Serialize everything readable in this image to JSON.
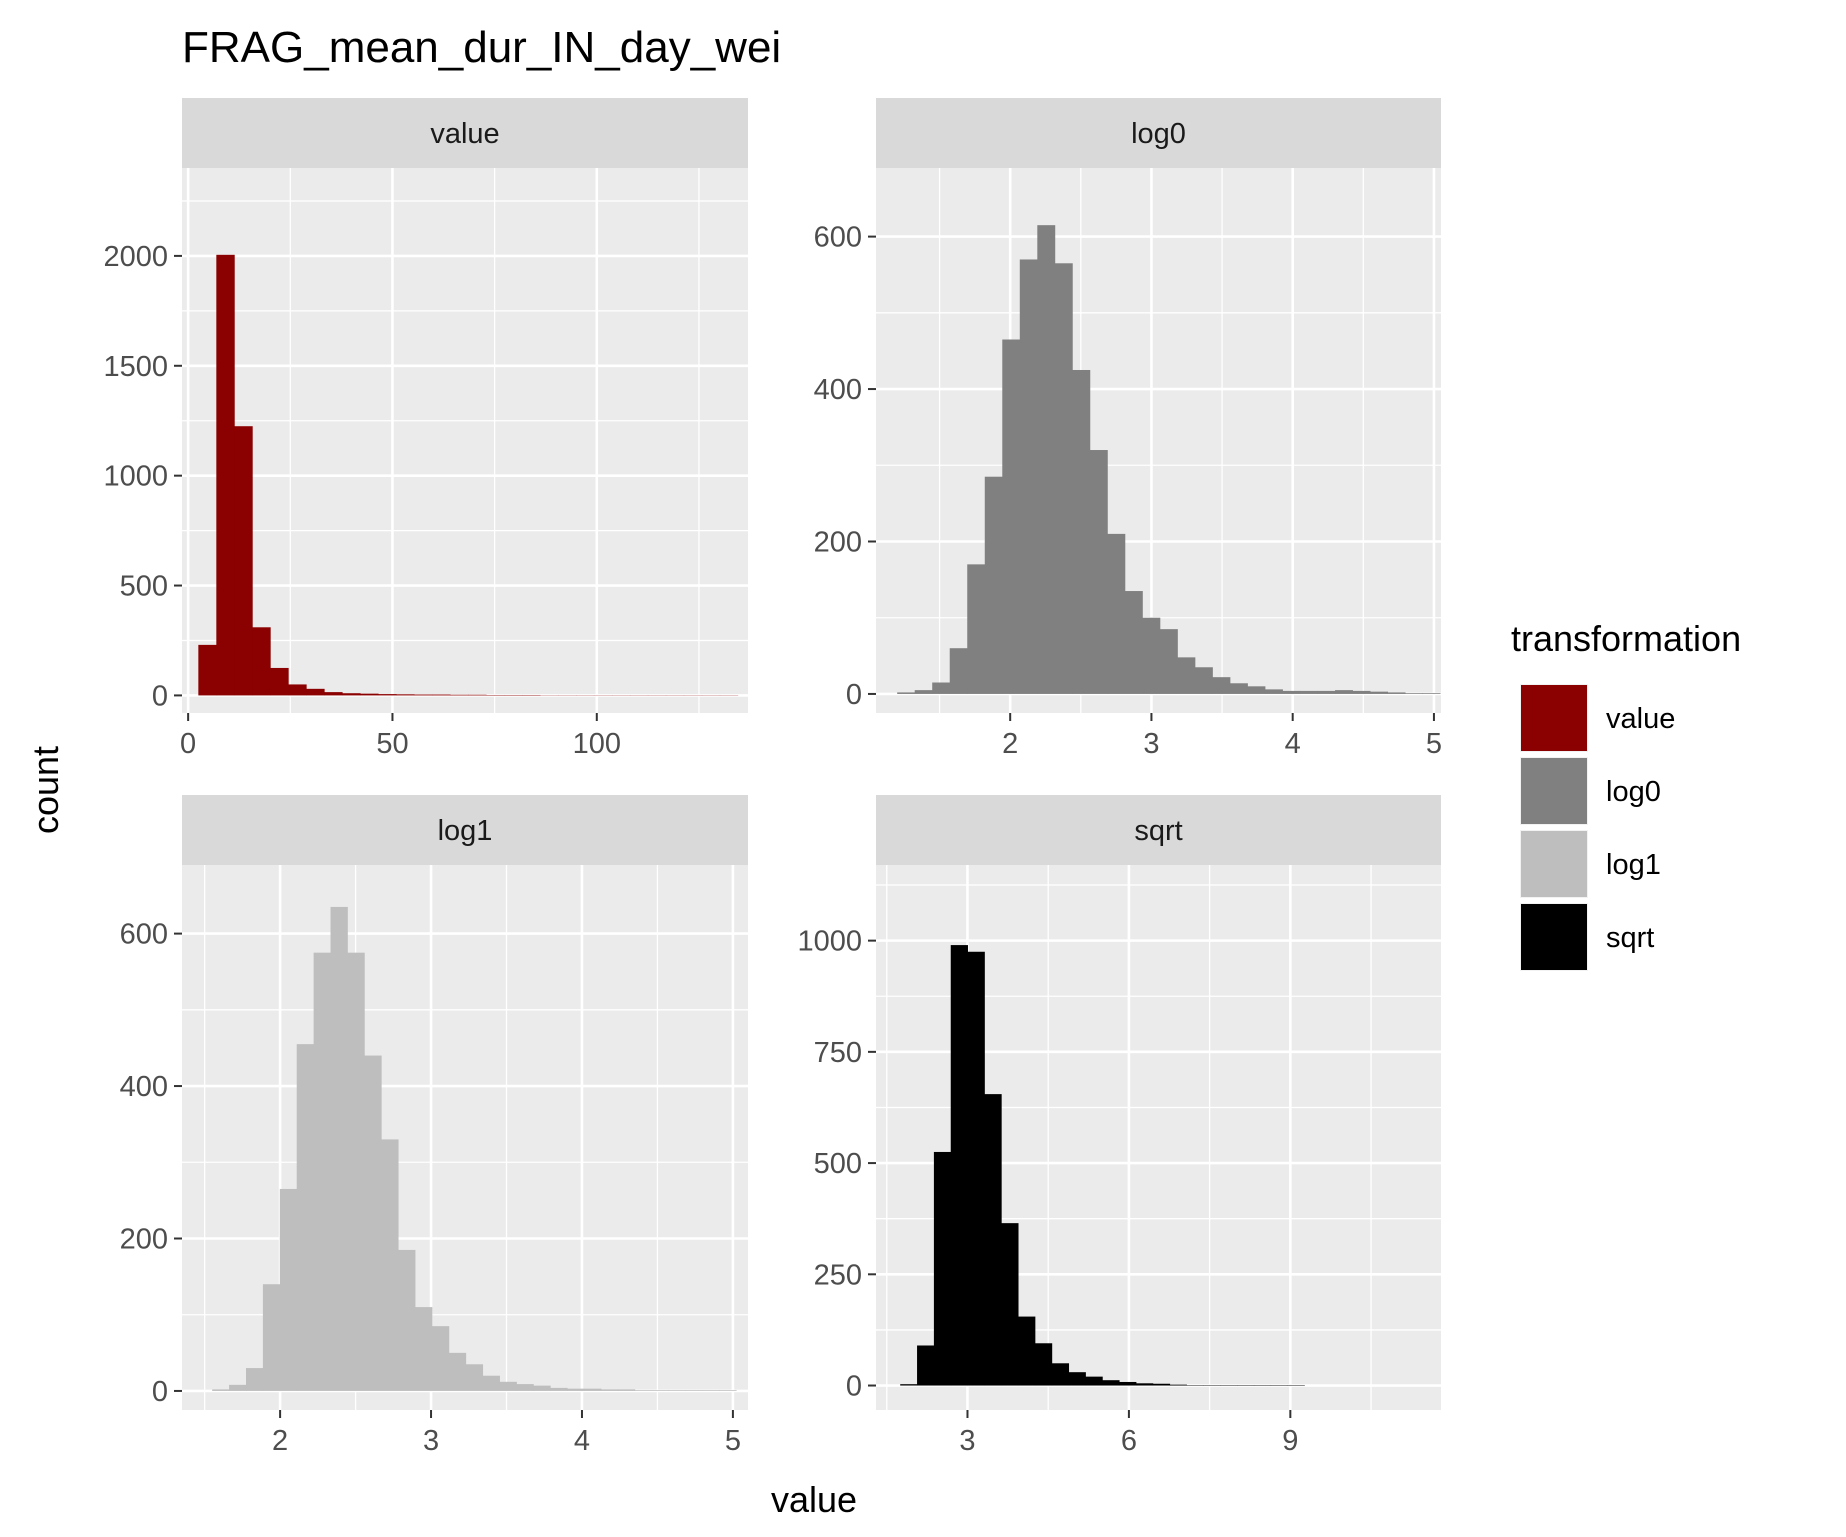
{
  "chart_data": {
    "type": "bar",
    "title": "FRAG_mean_dur_IN_day_wei",
    "xlabel": "value",
    "ylabel": "count",
    "grid": true,
    "legend": {
      "title": "transformation",
      "position": "right",
      "entries": [
        {
          "label": "value",
          "color": "#8B0000"
        },
        {
          "label": "log0",
          "color": "#808080"
        },
        {
          "label": "log1",
          "color": "#BEBEBE"
        },
        {
          "label": "sqrt",
          "color": "#000000"
        }
      ]
    },
    "panels": [
      {
        "strip": "value",
        "color": "#8B0000",
        "xlim": [
          -1.5,
          137
        ],
        "ylim": [
          -80,
          2400
        ],
        "xticks": [
          0,
          50,
          100
        ],
        "xtick_labels": [
          "0",
          "50",
          "100"
        ],
        "yticks": [
          0,
          500,
          1000,
          1500,
          2000
        ],
        "ytick_labels": [
          "0",
          "500",
          "1000",
          "1500",
          "2000"
        ],
        "bin_start": 2.5,
        "bin_width": 4.4,
        "counts": [
          230,
          2005,
          1225,
          310,
          125,
          50,
          30,
          15,
          10,
          8,
          6,
          5,
          4,
          4,
          3,
          3,
          2,
          2,
          2,
          1,
          1,
          1,
          1,
          1,
          1,
          1,
          1,
          1,
          1,
          1
        ]
      },
      {
        "strip": "log0",
        "color": "#808080",
        "xlim": [
          1.05,
          5.05
        ],
        "ylim": [
          -25,
          690
        ],
        "xticks": [
          2,
          3,
          4,
          5
        ],
        "xtick_labels": [
          "2",
          "3",
          "4",
          "5"
        ],
        "yticks": [
          0,
          200,
          400,
          600
        ],
        "yticks_labels_note": "",
        "ytick_labels": [
          "0",
          "200",
          "400",
          "600"
        ],
        "bin_start": 1.2,
        "bin_width": 0.124,
        "counts": [
          2,
          5,
          15,
          60,
          170,
          285,
          465,
          570,
          615,
          565,
          425,
          320,
          210,
          135,
          100,
          85,
          48,
          35,
          22,
          14,
          10,
          6,
          4,
          4,
          4,
          5,
          4,
          3,
          2,
          1,
          1
        ]
      },
      {
        "strip": "log1",
        "color": "#BEBEBE",
        "xlim": [
          1.35,
          5.1
        ],
        "ylim": [
          -25,
          690
        ],
        "xticks": [
          2,
          3,
          4,
          5
        ],
        "xtick_labels": [
          "2",
          "3",
          "4",
          "5"
        ],
        "yticks": [
          0,
          200,
          400,
          600
        ],
        "ytick_labels": [
          "0",
          "200",
          "400",
          "600"
        ],
        "bin_start": 1.55,
        "bin_width": 0.112,
        "counts": [
          2,
          8,
          30,
          140,
          265,
          455,
          575,
          635,
          575,
          440,
          330,
          185,
          110,
          85,
          50,
          35,
          20,
          12,
          9,
          7,
          4,
          3,
          3,
          2,
          2,
          1,
          1,
          1,
          1,
          1,
          1
        ]
      },
      {
        "strip": "sqrt",
        "color": "#000000",
        "xlim": [
          1.3,
          11.8
        ],
        "ylim": [
          -55,
          1170
        ],
        "xticks": [
          3,
          6,
          9
        ],
        "xtick_labels": [
          "3",
          "6",
          "9"
        ],
        "yticks": [
          0,
          250,
          500,
          750,
          1000
        ],
        "ytick_labels": [
          "0",
          "250",
          "500",
          "750",
          "1000"
        ],
        "bin_start": 1.75,
        "bin_width": 0.313,
        "counts": [
          3,
          90,
          525,
          990,
          975,
          655,
          365,
          155,
          95,
          50,
          30,
          20,
          12,
          8,
          5,
          4,
          2,
          1,
          1,
          1,
          1,
          1,
          1,
          1
        ]
      }
    ]
  }
}
